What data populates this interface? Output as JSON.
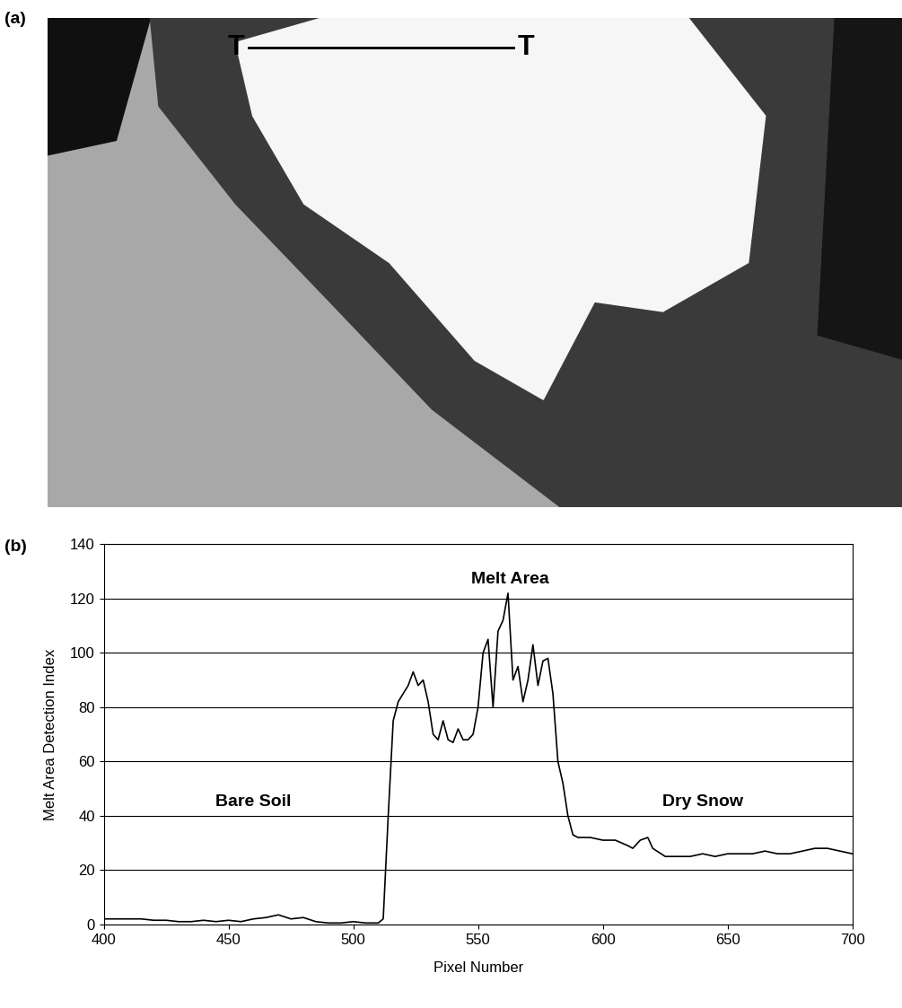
{
  "chart_data": [
    {
      "type": "image",
      "annotations": [
        "(a)",
        "T",
        "T"
      ]
    },
    {
      "type": "line",
      "annotations": [
        "(b)",
        "Melt Area",
        "Bare Soil",
        "Dry Snow"
      ],
      "x_label": "Pixel Number",
      "y_label": "Melt Area Detection Index",
      "x": [
        400,
        405,
        410,
        415,
        420,
        425,
        430,
        435,
        440,
        445,
        450,
        455,
        460,
        465,
        470,
        475,
        480,
        485,
        490,
        495,
        500,
        505,
        510,
        512,
        514,
        516,
        518,
        520,
        522,
        524,
        526,
        528,
        530,
        532,
        534,
        536,
        538,
        540,
        542,
        544,
        546,
        548,
        550,
        552,
        554,
        556,
        558,
        560,
        562,
        564,
        566,
        568,
        570,
        572,
        574,
        576,
        578,
        580,
        582,
        584,
        586,
        588,
        590,
        595,
        600,
        605,
        610,
        612,
        615,
        618,
        620,
        625,
        630,
        635,
        640,
        645,
        650,
        655,
        660,
        665,
        670,
        675,
        680,
        685,
        690,
        695,
        700
      ],
      "values": [
        2,
        2,
        2,
        2,
        1.5,
        1.5,
        1,
        1,
        1.5,
        1,
        1.5,
        1,
        2,
        2.5,
        3.5,
        2,
        2.5,
        1,
        0.5,
        0.5,
        1,
        0.5,
        0.5,
        2,
        40,
        75,
        82,
        85,
        88,
        93,
        88,
        90,
        82,
        70,
        68,
        75,
        68,
        67,
        72,
        68,
        68,
        70,
        80,
        100,
        105,
        80,
        108,
        112,
        122,
        90,
        95,
        82,
        90,
        103,
        88,
        97,
        98,
        85,
        60,
        52,
        40,
        33,
        32,
        32,
        31,
        31,
        29,
        28,
        31,
        32,
        28,
        25,
        25,
        25,
        26,
        25,
        26,
        26,
        26,
        27,
        26,
        26,
        27,
        28,
        28,
        27,
        26
      ],
      "color": "#000000",
      "xlim": [
        400,
        700
      ],
      "xticks": [
        400,
        450,
        500,
        550,
        600,
        650,
        700
      ],
      "ylim": [
        0,
        140
      ],
      "yticks": [
        0,
        20,
        40,
        60,
        80,
        100,
        120,
        140
      ],
      "grid": true
    }
  ]
}
